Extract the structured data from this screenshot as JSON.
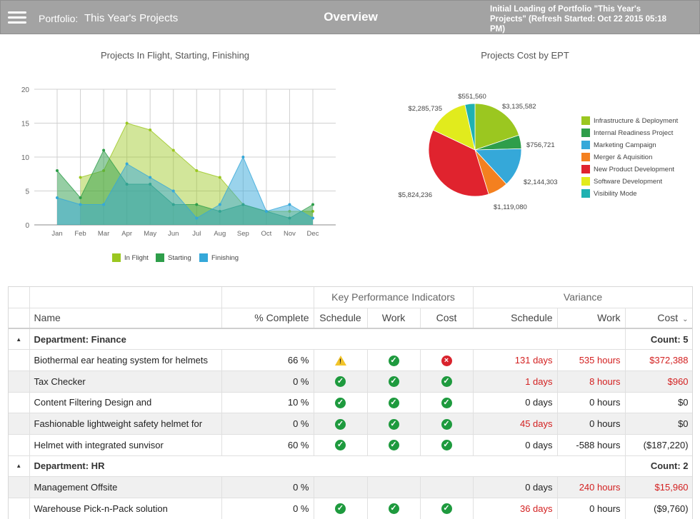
{
  "header": {
    "portfolio_prefix": "Portfolio:",
    "portfolio_name": "This Year's Projects",
    "title": "Overview",
    "status_line1": "Initial Loading of Portfolio \"This Year's",
    "status_line2": "Projects\" (Refresh Started: Oct 22 2015 05:18",
    "status_line3": "PM)"
  },
  "chart_data": [
    {
      "type": "area",
      "title": "Projects In Flight, Starting, Finishing",
      "categories": [
        "Jan",
        "Feb",
        "Mar",
        "Apr",
        "May",
        "Jun",
        "Jul",
        "Aug",
        "Sep",
        "Oct",
        "Nov",
        "Dec"
      ],
      "ylim": [
        0,
        20
      ],
      "yticks": [
        0,
        5,
        10,
        15,
        20
      ],
      "grid": true,
      "legend_position": "bottom",
      "series": [
        {
          "name": "In Flight",
          "color": "#9bc720",
          "values": [
            0,
            7,
            8,
            15,
            14,
            11,
            8,
            7,
            3,
            2,
            2,
            2
          ]
        },
        {
          "name": "Starting",
          "color": "#2e9e4a",
          "values": [
            8,
            4,
            11,
            6,
            6,
            3,
            3,
            2,
            3,
            2,
            1,
            3
          ]
        },
        {
          "name": "Finishing",
          "color": "#35a8d9",
          "values": [
            4,
            3,
            3,
            9,
            7,
            5,
            1,
            3,
            10,
            2,
            3,
            1
          ]
        }
      ]
    },
    {
      "type": "pie",
      "title": "Projects Cost by EPT",
      "legend_position": "right",
      "slices": [
        {
          "label": "Infrastructure & Deployment",
          "value": 3135582,
          "value_label": "$3,135,582",
          "color": "#9bc720"
        },
        {
          "label": "Internal Readiness  Project",
          "value": 756721,
          "value_label": "$756,721",
          "color": "#2e9e4a"
        },
        {
          "label": "Marketing Campaign",
          "value": 2144303,
          "value_label": "$2,144,303",
          "color": "#35a8d9"
        },
        {
          "label": "Merger & Aquisition",
          "value": 1119080,
          "value_label": "$1,119,080",
          "color": "#f4801f"
        },
        {
          "label": "New Product Development",
          "value": 5824236,
          "value_label": "$5,824,236",
          "color": "#e0232e"
        },
        {
          "label": "Software Development",
          "value": 2285735,
          "value_label": "$2,285,735",
          "color": "#e1eb1d"
        },
        {
          "label": "Visibility Mode",
          "value": 551560,
          "value_label": "$551,560",
          "color": "#1fb1b1"
        }
      ]
    }
  ],
  "grid": {
    "group_headers": {
      "kpi": "Key Performance Indicators",
      "variance": "Variance"
    },
    "columns": {
      "name": "Name",
      "complete": "% Complete",
      "kpi_schedule": "Schedule",
      "kpi_work": "Work",
      "kpi_cost": "Cost",
      "var_schedule": "Schedule",
      "var_work": "Work",
      "var_cost": "Cost"
    },
    "sort_icon": "chevron-down-icon",
    "status_colors": {
      "ok": "#1e9a3e",
      "bad": "#d9232d",
      "warn": "#f2c42a",
      "negative_variance": "#d32020"
    },
    "groups": [
      {
        "label": "Department: Finance",
        "count": "Count: 5",
        "rows": [
          {
            "name": "Biothermal ear heating system for helmets",
            "complete": "66 %",
            "kpi": [
              "warn",
              "ok",
              "bad"
            ],
            "schedule": "131 days",
            "work": "535 hours",
            "cost": "$372,388",
            "red": [
              true,
              true,
              true
            ]
          },
          {
            "name": "Tax Checker",
            "complete": "0 %",
            "kpi": [
              "ok",
              "ok",
              "ok"
            ],
            "schedule": "1 days",
            "work": "8 hours",
            "cost": "$960",
            "red": [
              true,
              true,
              true
            ]
          },
          {
            "name": "Content Filtering Design and",
            "complete": "10 %",
            "kpi": [
              "ok",
              "ok",
              "ok"
            ],
            "schedule": "0 days",
            "work": "0 hours",
            "cost": "$0",
            "red": [
              false,
              false,
              false
            ]
          },
          {
            "name": "Fashionable lightweight safety helmet for",
            "complete": "0 %",
            "kpi": [
              "ok",
              "ok",
              "ok"
            ],
            "schedule": "45 days",
            "work": "0 hours",
            "cost": "$0",
            "red": [
              true,
              false,
              false
            ]
          },
          {
            "name": "Helmet with integrated sunvisor",
            "complete": "60 %",
            "kpi": [
              "ok",
              "ok",
              "ok"
            ],
            "schedule": "0 days",
            "work": "-588 hours",
            "cost": "($187,220)",
            "red": [
              false,
              false,
              false
            ]
          }
        ]
      },
      {
        "label": "Department: HR",
        "count": "Count: 2",
        "rows": [
          {
            "name": "Management Offsite",
            "complete": "0 %",
            "kpi": [
              "",
              "",
              ""
            ],
            "schedule": "0 days",
            "work": "240 hours",
            "cost": "$15,960",
            "red": [
              false,
              true,
              true
            ]
          },
          {
            "name": "Warehouse Pick-n-Pack solution",
            "complete": "0 %",
            "kpi": [
              "ok",
              "ok",
              "ok"
            ],
            "schedule": "36 days",
            "work": "0 hours",
            "cost": "($9,760)",
            "red": [
              true,
              false,
              false
            ]
          }
        ]
      }
    ]
  }
}
